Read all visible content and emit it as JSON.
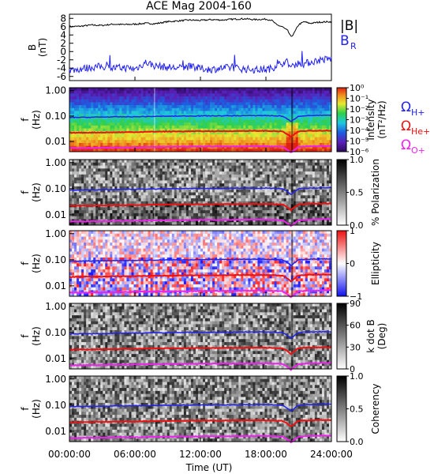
{
  "chart_data": {
    "type": "line",
    "title": "ACE Mag 2004-160",
    "xlabel": "Time (UT)",
    "x_ticks": [
      "00:00:00",
      "06:00:00",
      "12:00:00",
      "18:00:00",
      "24:00:00"
    ],
    "xlim_hours": [
      0,
      24
    ],
    "panels": [
      {
        "id": "field",
        "type": "line",
        "ylabel": "B",
        "yunit": "(nT)",
        "ylim": [
          -7,
          9
        ],
        "y_ticks": [
          "-6",
          "-4",
          "-2",
          "0",
          "2",
          "4",
          "6",
          "8"
        ],
        "legend": [
          {
            "label": "|B|",
            "color": "#000000"
          },
          {
            "label": "B",
            "sub": "R",
            "color": "#2222ee"
          }
        ],
        "series": [
          {
            "name": "|B|",
            "color": "#000000",
            "x": [
              0,
              1,
              2,
              3,
              4,
              5,
              6,
              7,
              7.8,
              9,
              10,
              11,
              12,
              13,
              14,
              15,
              16,
              17,
              18,
              18.5,
              19,
              19.5,
              20,
              20.3,
              20.6,
              21,
              21.5,
              22,
              23,
              24
            ],
            "y": [
              6.0,
              6.1,
              6.4,
              6.3,
              6.6,
              6.5,
              6.6,
              6.8,
              6.7,
              7.2,
              7.4,
              7.6,
              7.5,
              7.7,
              7.6,
              7.8,
              7.9,
              7.7,
              7.8,
              7.6,
              6.4,
              6.0,
              5.0,
              3.5,
              4.5,
              6.5,
              7.2,
              6.8,
              7.1,
              7.2
            ]
          },
          {
            "name": "B_R",
            "color": "#2222ee",
            "x": [
              0,
              1,
              2,
              3,
              4,
              5,
              6,
              7,
              7.8,
              9,
              10,
              11,
              12,
              13,
              14,
              15,
              16,
              17,
              18,
              18.5,
              19,
              19.5,
              20,
              20.3,
              20.6,
              21,
              21.5,
              22,
              23,
              24
            ],
            "y": [
              -4.5,
              -4.2,
              -3.8,
              -3.6,
              -4.0,
              -3.9,
              -4.2,
              -2.6,
              -3.4,
              -3.8,
              -4.0,
              -3.6,
              -4.1,
              -4.3,
              -4.0,
              -3.9,
              -4.2,
              -4.4,
              -4.3,
              -4.1,
              -3.2,
              -2.8,
              -2.5,
              -4.0,
              -3.2,
              -2.8,
              -3.0,
              -2.6,
              -2.0,
              -1.8
            ]
          }
        ]
      },
      {
        "id": "intensity",
        "type": "heatmap",
        "ylabel": "f",
        "yunit": "(Hz)",
        "colorbar": {
          "label": "Intensity",
          "unit": "(nT²/Hz)",
          "scale": "log",
          "ticks": [
            "10⁰",
            "10⁻¹",
            "10⁻²",
            "10⁻³",
            "10⁻⁴",
            "10⁻⁵",
            "10⁻⁶"
          ],
          "colormap": "rainbow"
        },
        "gyro_legend": [
          {
            "label": "Ω",
            "sub": "H+",
            "color": "#2222ee"
          },
          {
            "label": "Ω",
            "sub": "He+",
            "color": "#ee1111"
          },
          {
            "label": "Ω",
            "sub": "O+",
            "color": "#ee22ee"
          }
        ]
      },
      {
        "id": "polarization",
        "type": "heatmap",
        "ylabel": "f",
        "yunit": "(Hz)",
        "colorbar": {
          "label": "% Polarization",
          "unit": "",
          "ticks": [
            "1.0",
            "0.5",
            "0.0"
          ],
          "colormap": "gray"
        }
      },
      {
        "id": "ellipticity",
        "type": "heatmap",
        "ylabel": "f",
        "yunit": "(Hz)",
        "colorbar": {
          "label": "Ellipticity",
          "unit": "",
          "ticks": [
            "1",
            "0",
            "−1"
          ],
          "colormap": "bluewhitered"
        }
      },
      {
        "id": "kdotb",
        "type": "heatmap",
        "ylabel": "f",
        "yunit": "(Hz)",
        "colorbar": {
          "label": "k dot B",
          "unit": "(Deg)",
          "ticks": [
            "90",
            "60",
            "30",
            "0"
          ],
          "colormap": "gray"
        }
      },
      {
        "id": "coherency",
        "type": "heatmap",
        "ylabel": "f",
        "yunit": "(Hz)",
        "colorbar": {
          "label": "Coherency",
          "unit": "",
          "ticks": [
            "1.0",
            "0.5",
            "0.0"
          ],
          "colormap": "gray"
        }
      }
    ],
    "freq_axis": {
      "scale": "log",
      "ylim_hz": [
        0.004,
        1.3
      ],
      "y_ticks": [
        "1.00",
        "0.10",
        "0.01"
      ],
      "y_tick_values": [
        1.0,
        0.1,
        0.01
      ]
    },
    "gyrofrequencies": {
      "x": [
        0,
        2,
        4,
        6,
        7.8,
        10,
        12,
        14,
        16,
        18,
        19.5,
        20.3,
        20.6,
        21,
        22,
        24
      ],
      "H+": [
        0.088,
        0.09,
        0.093,
        0.094,
        0.097,
        0.1,
        0.102,
        0.102,
        0.104,
        0.105,
        0.1,
        0.06,
        0.075,
        0.1,
        0.105,
        0.108
      ],
      "He+": [
        0.022,
        0.0225,
        0.023,
        0.0235,
        0.0245,
        0.025,
        0.0255,
        0.0255,
        0.026,
        0.0262,
        0.025,
        0.015,
        0.019,
        0.025,
        0.0265,
        0.027
      ],
      "O+": [
        0.0055,
        0.0056,
        0.0058,
        0.0059,
        0.0061,
        0.0062,
        0.0064,
        0.0064,
        0.0065,
        0.0066,
        0.0062,
        0.0037,
        0.0047,
        0.0062,
        0.0066,
        0.0068
      ]
    }
  }
}
